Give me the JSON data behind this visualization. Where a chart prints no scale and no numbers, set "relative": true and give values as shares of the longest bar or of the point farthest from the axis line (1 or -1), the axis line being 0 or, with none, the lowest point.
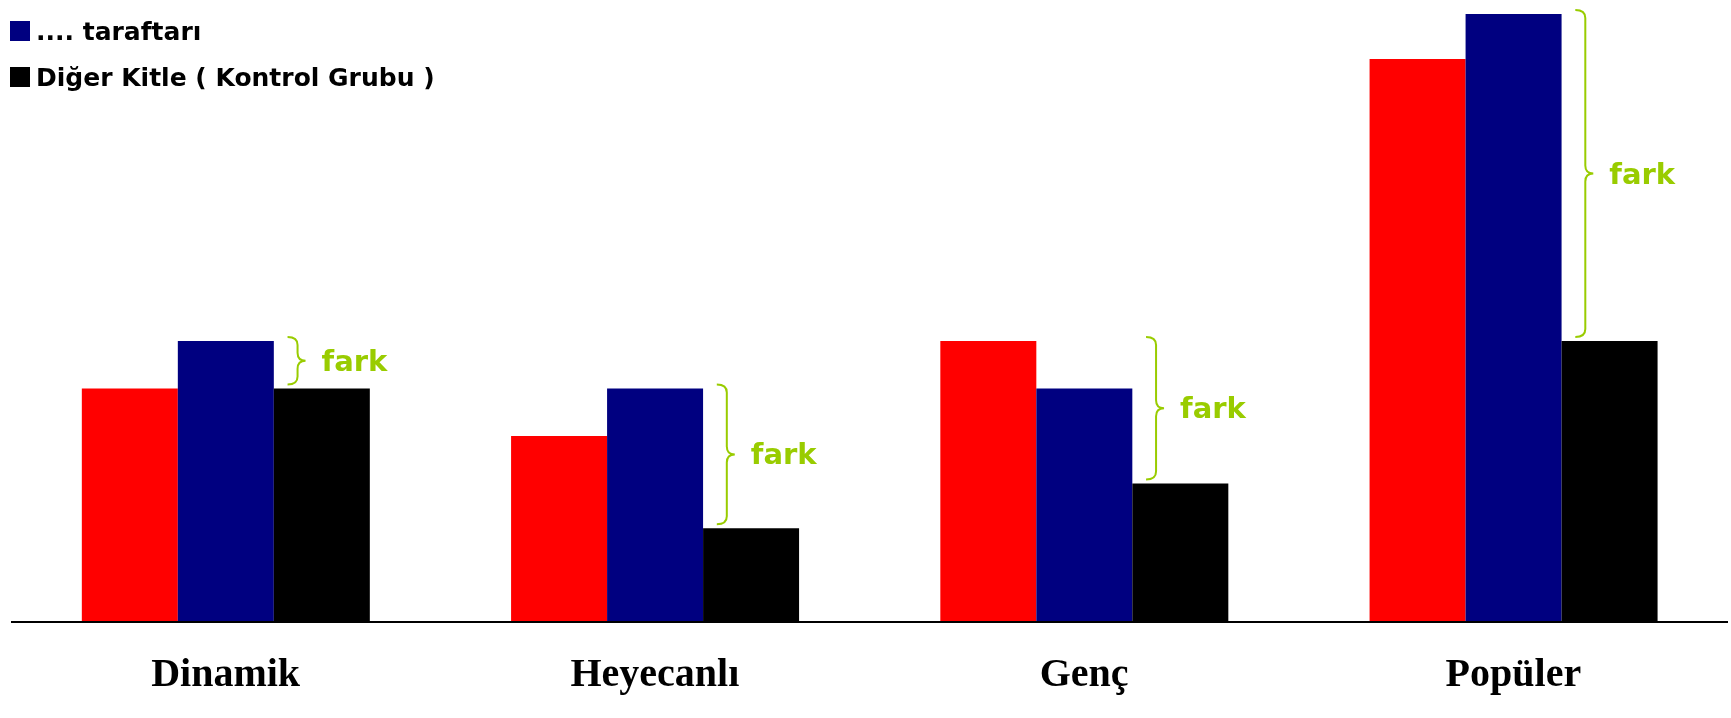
{
  "chart_data": {
    "type": "bar",
    "relative": true,
    "categories": [
      "Dinamik",
      "Heyecanlı",
      "Genç",
      "Popüler"
    ],
    "series": [
      {
        "color": "#ff0000",
        "values": [
          0.384,
          0.306,
          0.462,
          0.926
        ]
      },
      {
        "name": ".... taraftarı",
        "color": "#000080",
        "values": [
          0.462,
          0.384,
          0.384,
          1.0
        ]
      },
      {
        "name": "Diğer Kitle ( Kontrol Grubu )",
        "color": "#000000",
        "values": [
          0.384,
          0.154,
          0.228,
          0.462
        ]
      }
    ],
    "annotations": [
      "fark",
      "fark",
      "fark",
      "fark"
    ],
    "legend": "top left"
  }
}
